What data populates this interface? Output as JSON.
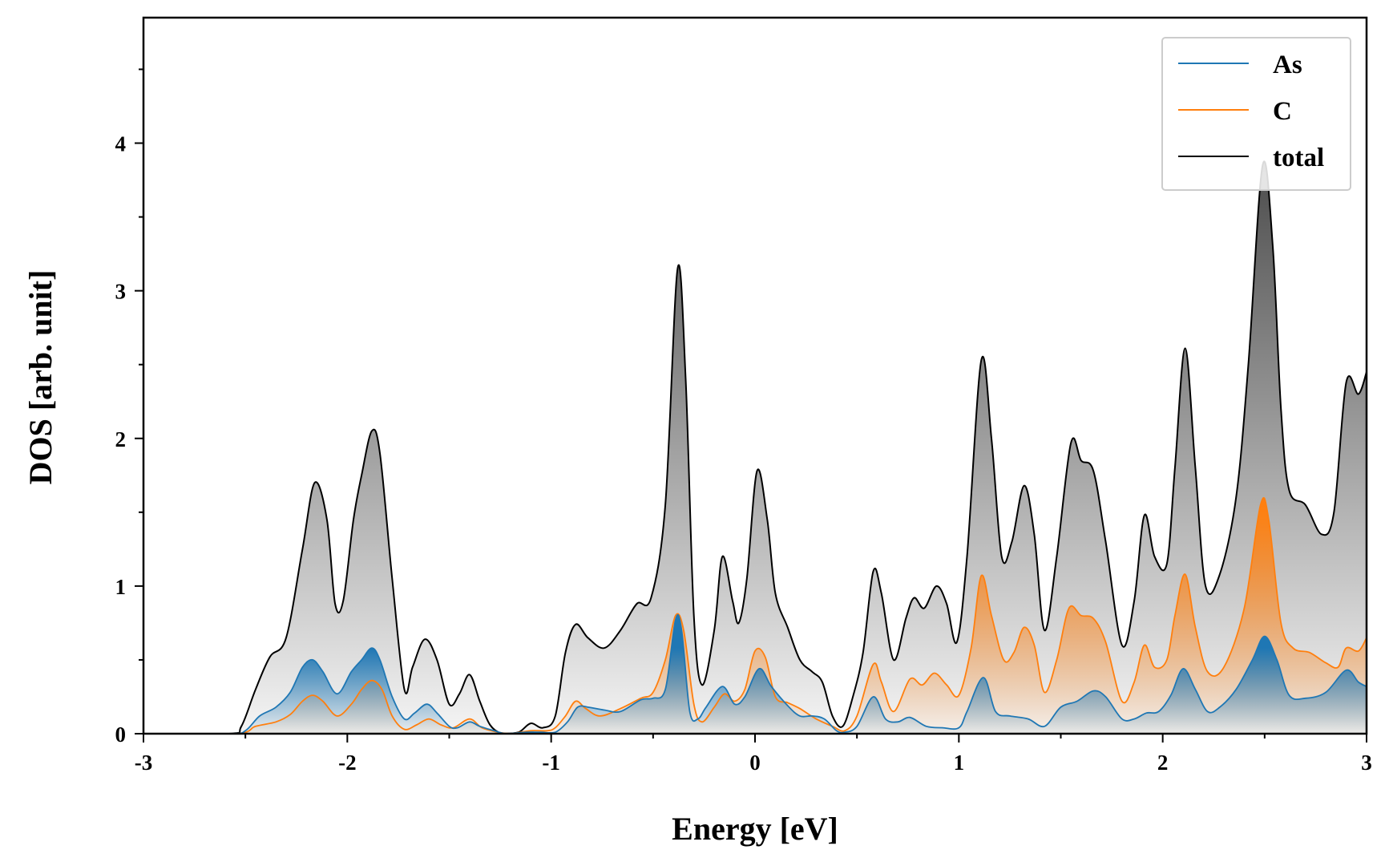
{
  "chart_data": {
    "type": "area",
    "xlabel": "Energy [eV]",
    "ylabel": "DOS [arb. unit]",
    "xlim": [
      -3,
      3
    ],
    "ylim": [
      0,
      4.85
    ],
    "xticks": [
      -3,
      -2,
      -1,
      0,
      1,
      2,
      3
    ],
    "xtick_labels": [
      "-3",
      "-2",
      "-1",
      "0",
      "1",
      "2",
      "3"
    ],
    "yticks": [
      0,
      1,
      2,
      3,
      4
    ],
    "ytick_labels": [
      "0",
      "1",
      "2",
      "3",
      "4"
    ],
    "grid": false,
    "legend_position": "top-right",
    "series": [
      {
        "name": "As",
        "color": "#1f77b4",
        "points": [
          [
            -3,
            0
          ],
          [
            -2.58,
            0
          ],
          [
            -2.5,
            0.02
          ],
          [
            -2.43,
            0.12
          ],
          [
            -2.35,
            0.18
          ],
          [
            -2.28,
            0.28
          ],
          [
            -2.22,
            0.45
          ],
          [
            -2.17,
            0.5
          ],
          [
            -2.12,
            0.42
          ],
          [
            -2.05,
            0.27
          ],
          [
            -1.98,
            0.42
          ],
          [
            -1.93,
            0.5
          ],
          [
            -1.88,
            0.58
          ],
          [
            -1.84,
            0.5
          ],
          [
            -1.78,
            0.25
          ],
          [
            -1.72,
            0.1
          ],
          [
            -1.67,
            0.14
          ],
          [
            -1.61,
            0.2
          ],
          [
            -1.56,
            0.14
          ],
          [
            -1.5,
            0.05
          ],
          [
            -1.46,
            0.04
          ],
          [
            -1.4,
            0.08
          ],
          [
            -1.35,
            0.05
          ],
          [
            -1.28,
            0.02
          ],
          [
            -1.22,
            0
          ],
          [
            -1.12,
            0.01
          ],
          [
            -1.05,
            0.01
          ],
          [
            -0.98,
            0.01
          ],
          [
            -0.92,
            0.08
          ],
          [
            -0.87,
            0.18
          ],
          [
            -0.82,
            0.18
          ],
          [
            -0.74,
            0.16
          ],
          [
            -0.66,
            0.15
          ],
          [
            -0.56,
            0.23
          ],
          [
            -0.5,
            0.24
          ],
          [
            -0.44,
            0.3
          ],
          [
            -0.39,
            0.77
          ],
          [
            -0.36,
            0.7
          ],
          [
            -0.32,
            0.15
          ],
          [
            -0.28,
            0.1
          ],
          [
            -0.24,
            0.18
          ],
          [
            -0.16,
            0.32
          ],
          [
            -0.1,
            0.2
          ],
          [
            -0.05,
            0.25
          ],
          [
            0.02,
            0.44
          ],
          [
            0.08,
            0.32
          ],
          [
            0.16,
            0.19
          ],
          [
            0.22,
            0.12
          ],
          [
            0.28,
            0.12
          ],
          [
            0.34,
            0.1
          ],
          [
            0.4,
            0.02
          ],
          [
            0.44,
            0.01
          ],
          [
            0.5,
            0.05
          ],
          [
            0.58,
            0.25
          ],
          [
            0.64,
            0.1
          ],
          [
            0.7,
            0.08
          ],
          [
            0.76,
            0.11
          ],
          [
            0.84,
            0.05
          ],
          [
            0.92,
            0.04
          ],
          [
            1.0,
            0.04
          ],
          [
            1.04,
            0.15
          ],
          [
            1.12,
            0.38
          ],
          [
            1.18,
            0.15
          ],
          [
            1.25,
            0.12
          ],
          [
            1.34,
            0.1
          ],
          [
            1.42,
            0.05
          ],
          [
            1.5,
            0.18
          ],
          [
            1.58,
            0.22
          ],
          [
            1.66,
            0.29
          ],
          [
            1.72,
            0.25
          ],
          [
            1.8,
            0.1
          ],
          [
            1.86,
            0.1
          ],
          [
            1.92,
            0.14
          ],
          [
            1.98,
            0.15
          ],
          [
            2.04,
            0.26
          ],
          [
            2.1,
            0.44
          ],
          [
            2.16,
            0.3
          ],
          [
            2.22,
            0.15
          ],
          [
            2.28,
            0.18
          ],
          [
            2.36,
            0.3
          ],
          [
            2.44,
            0.5
          ],
          [
            2.5,
            0.66
          ],
          [
            2.56,
            0.5
          ],
          [
            2.62,
            0.26
          ],
          [
            2.7,
            0.24
          ],
          [
            2.8,
            0.28
          ],
          [
            2.9,
            0.43
          ],
          [
            2.96,
            0.35
          ],
          [
            3.0,
            0.32
          ]
        ]
      },
      {
        "name": "C",
        "color": "#ff7f0e",
        "points": [
          [
            -3,
            0
          ],
          [
            -2.55,
            0
          ],
          [
            -2.45,
            0.05
          ],
          [
            -2.35,
            0.08
          ],
          [
            -2.28,
            0.13
          ],
          [
            -2.22,
            0.22
          ],
          [
            -2.17,
            0.26
          ],
          [
            -2.12,
            0.22
          ],
          [
            -2.05,
            0.12
          ],
          [
            -1.98,
            0.2
          ],
          [
            -1.93,
            0.3
          ],
          [
            -1.88,
            0.36
          ],
          [
            -1.83,
            0.3
          ],
          [
            -1.78,
            0.12
          ],
          [
            -1.72,
            0.03
          ],
          [
            -1.66,
            0.06
          ],
          [
            -1.6,
            0.1
          ],
          [
            -1.54,
            0.06
          ],
          [
            -1.48,
            0.04
          ],
          [
            -1.4,
            0.1
          ],
          [
            -1.34,
            0.04
          ],
          [
            -1.26,
            0.01
          ],
          [
            -1.2,
            0
          ],
          [
            -1.1,
            0.02
          ],
          [
            -1.02,
            0.02
          ],
          [
            -0.98,
            0.04
          ],
          [
            -0.93,
            0.12
          ],
          [
            -0.88,
            0.22
          ],
          [
            -0.83,
            0.17
          ],
          [
            -0.76,
            0.12
          ],
          [
            -0.66,
            0.17
          ],
          [
            -0.56,
            0.24
          ],
          [
            -0.5,
            0.28
          ],
          [
            -0.44,
            0.5
          ],
          [
            -0.39,
            0.8
          ],
          [
            -0.35,
            0.7
          ],
          [
            -0.3,
            0.2
          ],
          [
            -0.26,
            0.08
          ],
          [
            -0.2,
            0.18
          ],
          [
            -0.15,
            0.27
          ],
          [
            -0.1,
            0.22
          ],
          [
            -0.05,
            0.3
          ],
          [
            0.0,
            0.56
          ],
          [
            0.05,
            0.52
          ],
          [
            0.1,
            0.25
          ],
          [
            0.16,
            0.21
          ],
          [
            0.22,
            0.17
          ],
          [
            0.3,
            0.1
          ],
          [
            0.38,
            0.05
          ],
          [
            0.44,
            0.02
          ],
          [
            0.5,
            0.12
          ],
          [
            0.58,
            0.47
          ],
          [
            0.62,
            0.35
          ],
          [
            0.68,
            0.15
          ],
          [
            0.76,
            0.37
          ],
          [
            0.82,
            0.33
          ],
          [
            0.88,
            0.41
          ],
          [
            0.94,
            0.33
          ],
          [
            1.0,
            0.26
          ],
          [
            1.06,
            0.58
          ],
          [
            1.11,
            1.07
          ],
          [
            1.16,
            0.8
          ],
          [
            1.22,
            0.5
          ],
          [
            1.27,
            0.55
          ],
          [
            1.32,
            0.72
          ],
          [
            1.37,
            0.6
          ],
          [
            1.42,
            0.28
          ],
          [
            1.48,
            0.5
          ],
          [
            1.54,
            0.85
          ],
          [
            1.6,
            0.8
          ],
          [
            1.66,
            0.78
          ],
          [
            1.72,
            0.62
          ],
          [
            1.8,
            0.22
          ],
          [
            1.86,
            0.35
          ],
          [
            1.91,
            0.6
          ],
          [
            1.96,
            0.45
          ],
          [
            2.02,
            0.5
          ],
          [
            2.06,
            0.8
          ],
          [
            2.11,
            1.08
          ],
          [
            2.16,
            0.72
          ],
          [
            2.22,
            0.42
          ],
          [
            2.3,
            0.45
          ],
          [
            2.4,
            0.85
          ],
          [
            2.48,
            1.55
          ],
          [
            2.52,
            1.45
          ],
          [
            2.58,
            0.75
          ],
          [
            2.64,
            0.58
          ],
          [
            2.72,
            0.55
          ],
          [
            2.8,
            0.48
          ],
          [
            2.86,
            0.45
          ],
          [
            2.9,
            0.58
          ],
          [
            2.96,
            0.56
          ],
          [
            3.0,
            0.65
          ]
        ]
      },
      {
        "name": "total",
        "color": "#000000",
        "points": [
          [
            -3,
            0
          ],
          [
            -2.58,
            0
          ],
          [
            -2.52,
            0.05
          ],
          [
            -2.45,
            0.3
          ],
          [
            -2.38,
            0.52
          ],
          [
            -2.3,
            0.65
          ],
          [
            -2.22,
            1.25
          ],
          [
            -2.16,
            1.7
          ],
          [
            -2.1,
            1.45
          ],
          [
            -2.06,
            0.88
          ],
          [
            -2.02,
            0.9
          ],
          [
            -1.97,
            1.45
          ],
          [
            -1.93,
            1.75
          ],
          [
            -1.88,
            2.05
          ],
          [
            -1.84,
            1.9
          ],
          [
            -1.78,
            1.05
          ],
          [
            -1.72,
            0.3
          ],
          [
            -1.68,
            0.45
          ],
          [
            -1.62,
            0.64
          ],
          [
            -1.56,
            0.5
          ],
          [
            -1.5,
            0.2
          ],
          [
            -1.45,
            0.27
          ],
          [
            -1.4,
            0.4
          ],
          [
            -1.35,
            0.22
          ],
          [
            -1.3,
            0.06
          ],
          [
            -1.24,
            0.0
          ],
          [
            -1.16,
            0.01
          ],
          [
            -1.1,
            0.07
          ],
          [
            -1.04,
            0.04
          ],
          [
            -0.98,
            0.12
          ],
          [
            -0.93,
            0.55
          ],
          [
            -0.88,
            0.74
          ],
          [
            -0.82,
            0.65
          ],
          [
            -0.74,
            0.58
          ],
          [
            -0.66,
            0.7
          ],
          [
            -0.58,
            0.88
          ],
          [
            -0.51,
            0.92
          ],
          [
            -0.44,
            1.55
          ],
          [
            -0.38,
            3.15
          ],
          [
            -0.34,
            2.4
          ],
          [
            -0.3,
            0.8
          ],
          [
            -0.26,
            0.33
          ],
          [
            -0.2,
            0.7
          ],
          [
            -0.16,
            1.2
          ],
          [
            -0.11,
            0.9
          ],
          [
            -0.08,
            0.75
          ],
          [
            -0.04,
            1.05
          ],
          [
            0.01,
            1.78
          ],
          [
            0.06,
            1.45
          ],
          [
            0.1,
            0.95
          ],
          [
            0.16,
            0.72
          ],
          [
            0.22,
            0.5
          ],
          [
            0.28,
            0.42
          ],
          [
            0.33,
            0.35
          ],
          [
            0.38,
            0.12
          ],
          [
            0.43,
            0.05
          ],
          [
            0.48,
            0.25
          ],
          [
            0.53,
            0.55
          ],
          [
            0.58,
            1.1
          ],
          [
            0.62,
            0.95
          ],
          [
            0.68,
            0.5
          ],
          [
            0.74,
            0.78
          ],
          [
            0.78,
            0.92
          ],
          [
            0.83,
            0.85
          ],
          [
            0.89,
            1.0
          ],
          [
            0.94,
            0.88
          ],
          [
            0.99,
            0.62
          ],
          [
            1.04,
            1.2
          ],
          [
            1.11,
            2.53
          ],
          [
            1.16,
            2.0
          ],
          [
            1.21,
            1.2
          ],
          [
            1.26,
            1.3
          ],
          [
            1.32,
            1.68
          ],
          [
            1.37,
            1.35
          ],
          [
            1.42,
            0.7
          ],
          [
            1.48,
            1.2
          ],
          [
            1.55,
            1.97
          ],
          [
            1.6,
            1.85
          ],
          [
            1.66,
            1.78
          ],
          [
            1.72,
            1.3
          ],
          [
            1.8,
            0.6
          ],
          [
            1.86,
            0.9
          ],
          [
            1.91,
            1.48
          ],
          [
            1.96,
            1.2
          ],
          [
            2.02,
            1.15
          ],
          [
            2.06,
            1.8
          ],
          [
            2.11,
            2.61
          ],
          [
            2.16,
            1.8
          ],
          [
            2.21,
            1.0
          ],
          [
            2.28,
            1.08
          ],
          [
            2.36,
            1.6
          ],
          [
            2.42,
            2.5
          ],
          [
            2.49,
            3.85
          ],
          [
            2.54,
            3.3
          ],
          [
            2.58,
            2.2
          ],
          [
            2.62,
            1.65
          ],
          [
            2.7,
            1.55
          ],
          [
            2.78,
            1.35
          ],
          [
            2.84,
            1.5
          ],
          [
            2.9,
            2.38
          ],
          [
            2.96,
            2.3
          ],
          [
            3.0,
            2.45
          ]
        ]
      }
    ]
  }
}
